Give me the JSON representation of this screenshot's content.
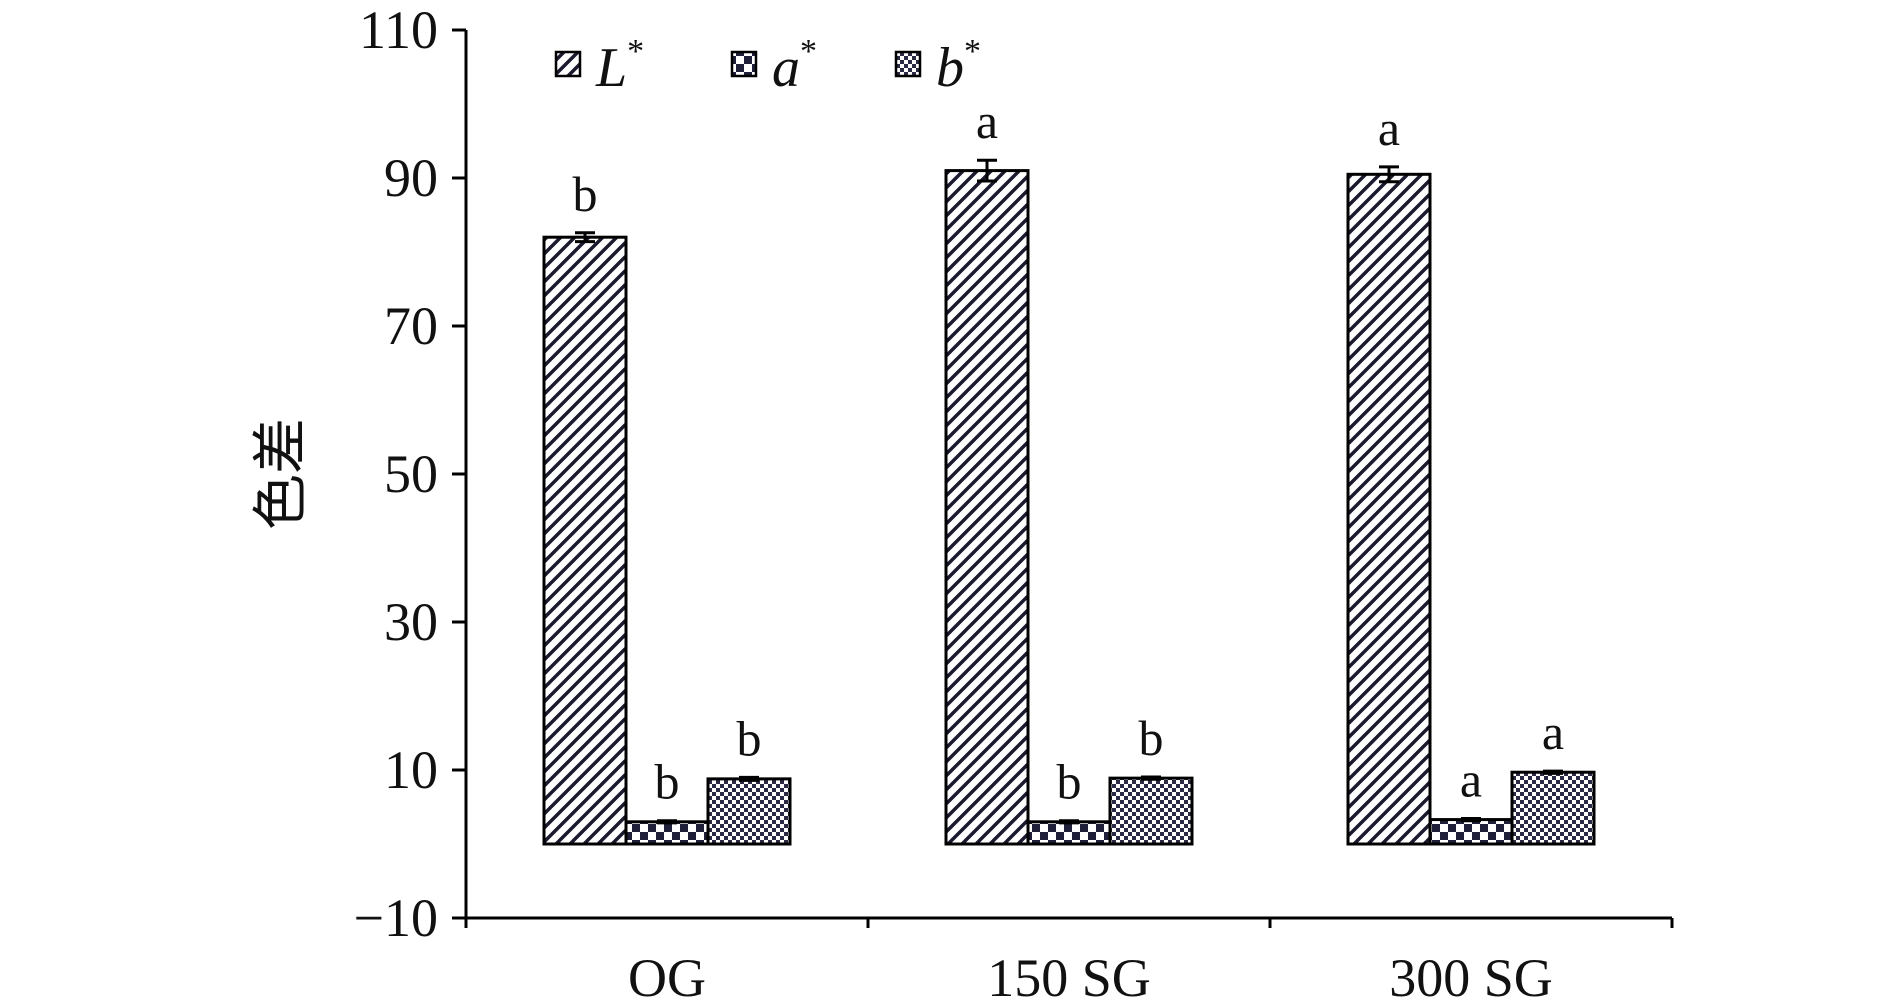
{
  "chart_data": {
    "type": "bar",
    "categories": [
      "OG",
      "150 SG",
      "300 SG"
    ],
    "series": [
      {
        "name": "L",
        "sup": "*",
        "values": [
          82.0,
          91.0,
          90.5
        ],
        "errors": [
          0.6,
          1.4,
          1.0
        ],
        "significance": [
          "b",
          "a",
          "a"
        ]
      },
      {
        "name": "a",
        "sup": "*",
        "values": [
          3.0,
          3.0,
          3.3
        ],
        "errors": [
          0.15,
          0.15,
          0.15
        ],
        "significance": [
          "b",
          "b",
          "a"
        ]
      },
      {
        "name": "b",
        "sup": "*",
        "values": [
          8.8,
          8.9,
          9.7
        ],
        "errors": [
          0.2,
          0.15,
          0.15
        ],
        "significance": [
          "b",
          "b",
          "a"
        ]
      }
    ],
    "ylabel": "色差",
    "ylim": [
      -10,
      110
    ],
    "yticks": [
      "110",
      "90",
      "70",
      "50",
      "30",
      "10",
      "−10"
    ],
    "ytick_values": [
      110,
      90,
      70,
      50,
      30,
      10,
      -10
    ],
    "grid": false,
    "legend": "top-left",
    "colors": {
      "bar_fill": "#ffffff",
      "pattern_ink": "#1a1a2e",
      "axis": "#000000"
    },
    "patterns": [
      "diagonal-hatch",
      "checker-coarse",
      "checker-fine"
    ]
  }
}
